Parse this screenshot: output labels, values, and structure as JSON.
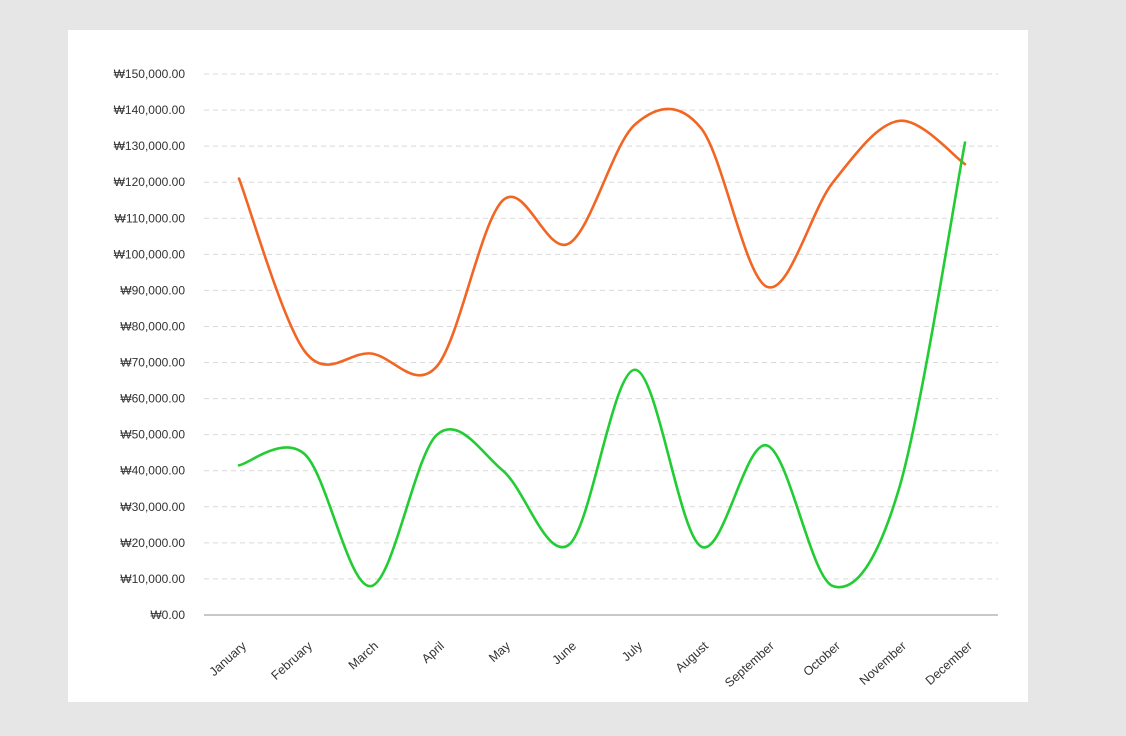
{
  "chart_data": {
    "type": "line",
    "title": "",
    "xlabel": "",
    "ylabel": "",
    "categories": [
      "January",
      "February",
      "March",
      "April",
      "May",
      "June",
      "July",
      "August",
      "September",
      "October",
      "November",
      "December"
    ],
    "ylim": [
      0,
      150000
    ],
    "yticks": [
      0,
      10000,
      20000,
      30000,
      40000,
      50000,
      60000,
      70000,
      80000,
      90000,
      100000,
      110000,
      120000,
      130000,
      140000,
      150000
    ],
    "ytick_labels": [
      "₩0.00",
      "₩10,000.00",
      "₩20,000.00",
      "₩30,000.00",
      "₩40,000.00",
      "₩50,000.00",
      "₩60,000.00",
      "₩70,000.00",
      "₩80,000.00",
      "₩90,000.00",
      "₩100,000.00",
      "₩110,000.00",
      "₩120,000.00",
      "₩130,000.00",
      "₩140,000.00",
      "₩150,000.00"
    ],
    "grid": true,
    "legend": "none",
    "smooth": true,
    "series": [
      {
        "color": "#f26522",
        "values": [
          121000,
          73000,
          72500,
          69000,
          115000,
          103000,
          136000,
          135000,
          91000,
          120000,
          137000,
          125000
        ]
      },
      {
        "color": "#22cc33",
        "values": [
          41500,
          44500,
          8000,
          50000,
          40000,
          19500,
          68000,
          19000,
          47000,
          8000,
          35000,
          131000
        ]
      }
    ]
  }
}
